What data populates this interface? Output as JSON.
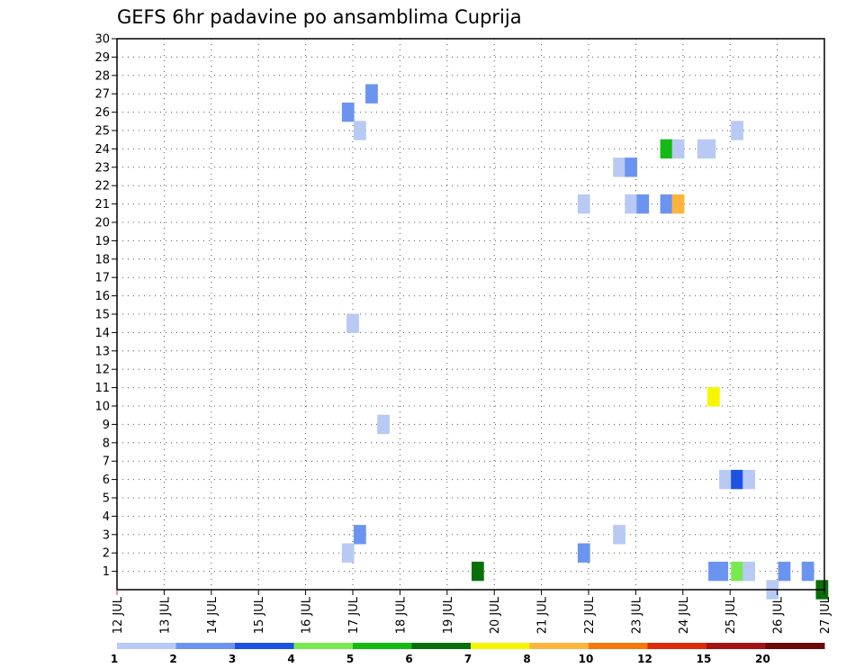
{
  "chart_data": {
    "type": "heatmap",
    "title": "GEFS 6hr padavine po ansamblima Cuprija",
    "y_ticks": [
      "1",
      "2",
      "3",
      "4",
      "5",
      "6",
      "7",
      "8",
      "9",
      "10",
      "11",
      "12",
      "13",
      "14",
      "15",
      "16",
      "17",
      "18",
      "19",
      "20",
      "21",
      "22",
      "23",
      "24",
      "25",
      "26",
      "27",
      "28",
      "29",
      "30"
    ],
    "x_ticks": [
      "12 JUL",
      "13 JUL",
      "14 JUL",
      "15 JUL",
      "16 JUL",
      "17 JUL",
      "18 JUL",
      "19 JUL",
      "20 JUL",
      "21 JUL",
      "22 JUL",
      "23 JUL",
      "24 JUL",
      "25 JUL",
      "26 JUL",
      "27 JUL"
    ],
    "ylim": [
      0,
      30
    ],
    "xlim": [
      "12 JUL",
      "27 JUL"
    ],
    "grid": true,
    "colorbar": {
      "ticks": [
        "1",
        "2",
        "3",
        "4",
        "5",
        "6",
        "7",
        "8",
        "10",
        "12",
        "15",
        "20"
      ],
      "colors": [
        "#b8caf4",
        "#6b94f0",
        "#1c52e4",
        "#78ea50",
        "#14ba14",
        "#0a6e0a",
        "#f6f600",
        "#fcb43c",
        "#f6780a",
        "#dc2a0a",
        "#a41414",
        "#6a0a0a"
      ]
    },
    "cells": [
      {
        "day": 16.9,
        "member": 26,
        "level": 2
      },
      {
        "day": 17.4,
        "member": 27,
        "level": 2
      },
      {
        "day": 17.15,
        "member": 25,
        "level": 1
      },
      {
        "day": 17.0,
        "member": 14.5,
        "span": 2,
        "level": 1
      },
      {
        "day": 17.65,
        "member": 9,
        "level": 1
      },
      {
        "day": 17.15,
        "member": 3,
        "level": 2
      },
      {
        "day": 16.9,
        "member": 2,
        "level": 1
      },
      {
        "day": 19.65,
        "member": 1,
        "level": 6
      },
      {
        "day": 21.9,
        "member": 21,
        "level": 1
      },
      {
        "day": 21.9,
        "member": 2,
        "level": 2
      },
      {
        "day": 22.65,
        "member": 23,
        "level": 1
      },
      {
        "day": 22.9,
        "member": 23,
        "level": 2
      },
      {
        "day": 22.9,
        "member": 21,
        "level": 1
      },
      {
        "day": 23.15,
        "member": 21,
        "level": 2
      },
      {
        "day": 22.65,
        "member": 3,
        "level": 1
      },
      {
        "day": 23.65,
        "member": 24,
        "level": 5
      },
      {
        "day": 23.9,
        "member": 24,
        "level": 1
      },
      {
        "day": 24.5,
        "member": 24,
        "span": 1.3,
        "level": 1
      },
      {
        "day": 25.15,
        "member": 25,
        "level": 1
      },
      {
        "day": 23.65,
        "member": 21,
        "level": 2
      },
      {
        "day": 23.9,
        "member": 21,
        "level": 8
      },
      {
        "day": 24.65,
        "member": 10.5,
        "span": 2,
        "level": 7
      },
      {
        "day": 24.9,
        "member": 6,
        "level": 1
      },
      {
        "day": 25.15,
        "member": 6,
        "level": 3
      },
      {
        "day": 25.4,
        "member": 6,
        "level": 1
      },
      {
        "day": 24.75,
        "member": 1,
        "span": 1.4,
        "level": 2
      },
      {
        "day": 25.15,
        "member": 1,
        "level": 4
      },
      {
        "day": 25.4,
        "member": 1,
        "level": 1
      },
      {
        "day": 25.9,
        "member": 0,
        "level": 1
      },
      {
        "day": 26.15,
        "member": 1,
        "level": 2
      },
      {
        "day": 26.65,
        "member": 1,
        "level": 2
      },
      {
        "day": 26.95,
        "member": 0,
        "level": 6
      }
    ]
  }
}
